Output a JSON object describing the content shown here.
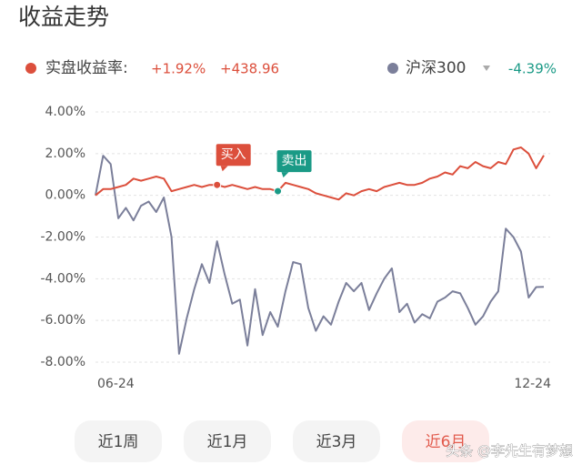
{
  "header": {
    "title": "收益走势"
  },
  "chart_data": {
    "type": "line",
    "categories": [
      "06-24",
      null,
      null,
      null,
      null,
      null,
      null,
      null,
      null,
      null,
      null,
      null,
      null,
      null,
      null,
      null,
      null,
      null,
      null,
      null,
      null,
      null,
      null,
      null,
      null,
      null,
      null,
      null,
      null,
      null,
      null,
      null,
      null,
      null,
      null,
      null,
      null,
      null,
      null,
      null,
      null,
      null,
      null,
      null,
      null,
      null,
      null,
      null,
      null,
      null,
      null,
      null,
      null,
      null,
      null,
      null,
      null,
      null,
      null,
      "12-24"
    ],
    "series": [
      {
        "name": "实盘收益率:",
        "color": "#dc4f3c",
        "summary": [
          {
            "value": 1.92,
            "label": "+1.92%"
          },
          {
            "value": 438.96,
            "label": "+438.96"
          }
        ],
        "values": [
          0.0,
          0.3,
          0.3,
          0.4,
          0.5,
          0.8,
          0.7,
          0.8,
          0.9,
          0.8,
          0.2,
          0.3,
          0.4,
          0.5,
          0.4,
          0.5,
          0.5,
          0.4,
          0.5,
          0.4,
          0.3,
          0.4,
          0.3,
          0.3,
          0.2,
          0.6,
          0.5,
          0.4,
          0.3,
          0.1,
          0.0,
          -0.1,
          -0.2,
          0.1,
          0.0,
          0.2,
          0.3,
          0.2,
          0.4,
          0.5,
          0.6,
          0.5,
          0.5,
          0.6,
          0.8,
          0.9,
          1.1,
          1.0,
          1.4,
          1.3,
          1.6,
          1.4,
          1.3,
          1.6,
          1.5,
          2.2,
          2.3,
          2.0,
          1.3,
          1.92
        ]
      },
      {
        "name": "沪深300",
        "color": "#7b7f9a",
        "summary": [
          {
            "value": -4.39,
            "label": "-4.39%"
          }
        ],
        "values": [
          0.0,
          1.9,
          1.5,
          -1.1,
          -0.6,
          -1.2,
          -0.5,
          -0.3,
          -0.8,
          -0.1,
          -2.0,
          -7.6,
          -5.9,
          -4.5,
          -3.3,
          -4.2,
          -2.2,
          -3.8,
          -5.2,
          -5.0,
          -7.2,
          -4.5,
          -6.7,
          -5.6,
          -6.3,
          -4.6,
          -3.2,
          -3.3,
          -5.4,
          -6.5,
          -5.8,
          -6.2,
          -5.1,
          -4.2,
          -4.6,
          -4.2,
          -5.5,
          -4.7,
          -4.0,
          -3.5,
          -5.6,
          -5.2,
          -6.1,
          -5.7,
          -5.9,
          -5.1,
          -4.9,
          -4.6,
          -4.7,
          -5.4,
          -6.2,
          -5.8,
          -5.1,
          -4.6,
          -1.6,
          -2.0,
          -2.7,
          -4.9,
          -4.4,
          -4.39
        ]
      }
    ],
    "annotations": [
      {
        "text": "买入",
        "index": 16,
        "color": "#dc4f3c"
      },
      {
        "text": "卖出",
        "index": 24,
        "color": "#1a9a86"
      }
    ],
    "ylim": [
      -8,
      4
    ],
    "yticks": [
      {
        "value": 4,
        "label": "4.00%"
      },
      {
        "value": 2,
        "label": "2.00%"
      },
      {
        "value": 0,
        "label": "0.00%"
      },
      {
        "value": -2,
        "label": "-2.00%"
      },
      {
        "value": -4,
        "label": "-4.00%"
      },
      {
        "value": -6,
        "label": "-6.00%"
      },
      {
        "value": -8,
        "label": "-8.00%"
      }
    ],
    "grid": true
  },
  "ui": {
    "buttons": [
      "近1周",
      "近1月",
      "近3月",
      "近6月"
    ],
    "active": "近6月",
    "watermark": "头条 @李先生有梦想"
  }
}
